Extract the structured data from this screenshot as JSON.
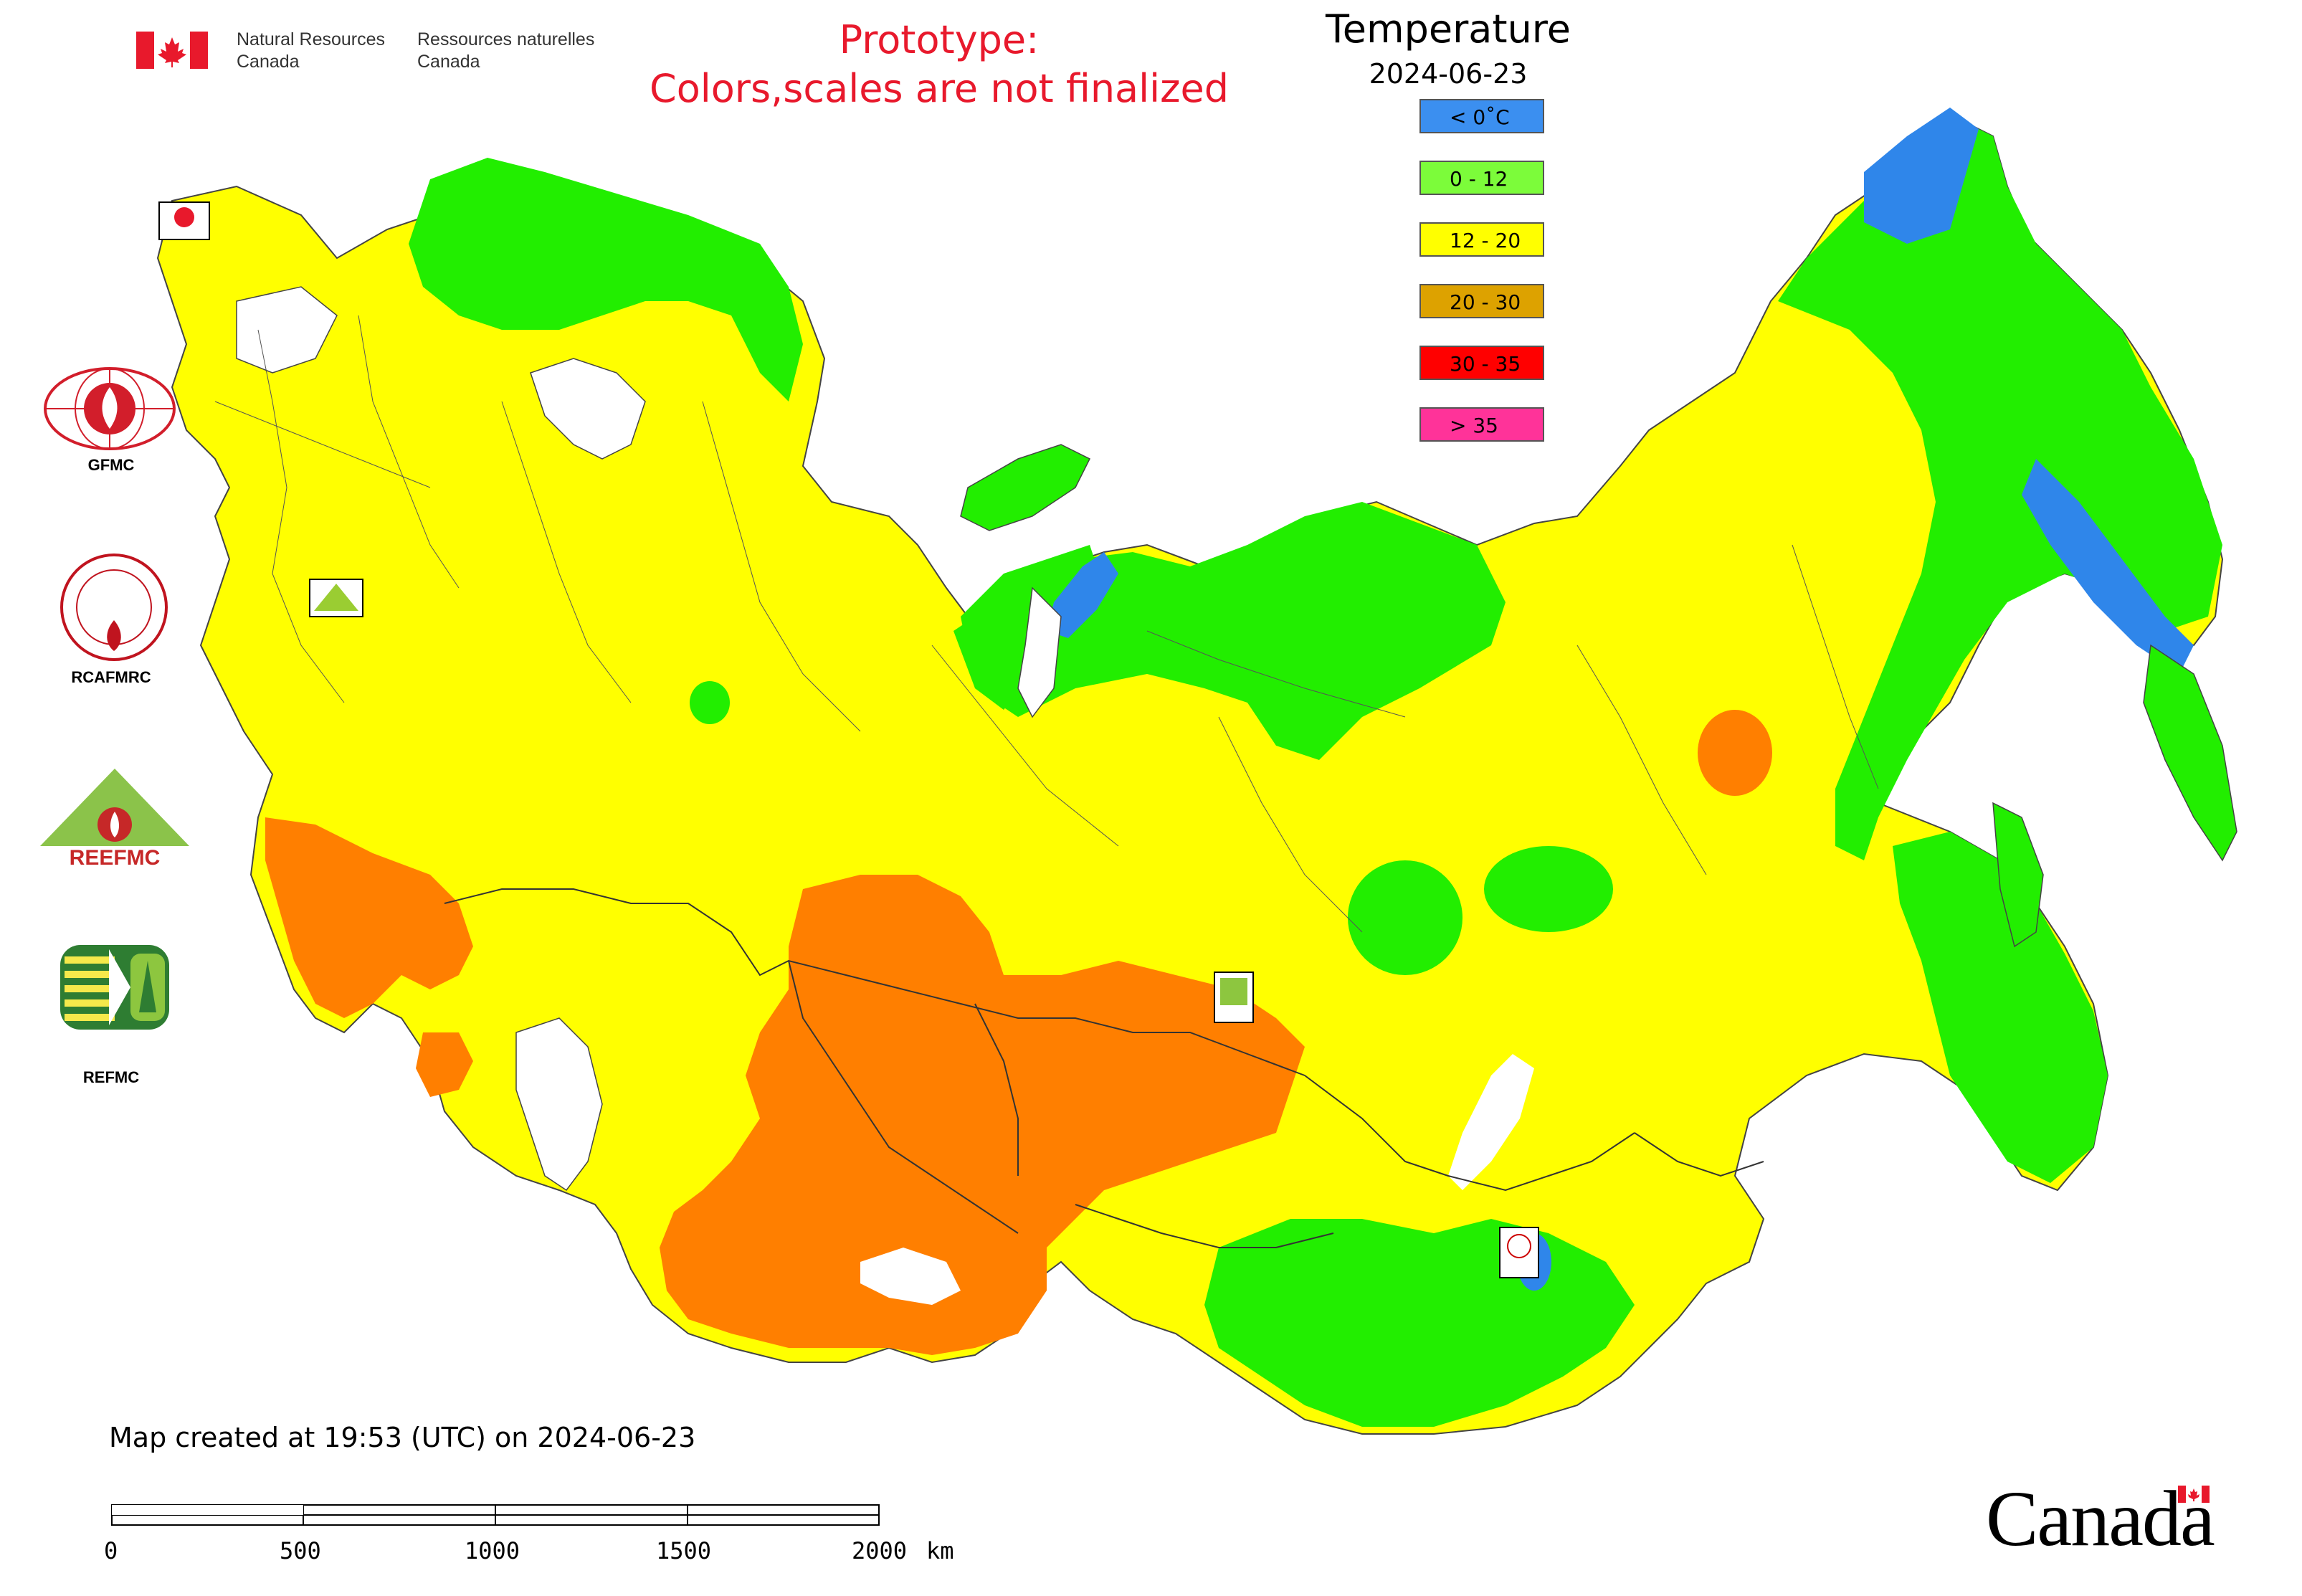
{
  "header": {
    "dept_en_line1": "Natural Resources",
    "dept_en_line2": "Canada",
    "dept_fr_line1": "Ressources naturelles",
    "dept_fr_line2": "Canada",
    "prototype_line1": "Prototype:",
    "prototype_line2": "Colors,scales are not finalized"
  },
  "legend": {
    "title": "Temperature",
    "date": "2024-06-23",
    "classes": [
      {
        "label": "< 0˚C",
        "color": "#3b8ff0"
      },
      {
        "label": "0 - 12",
        "color": "#7cfc3a"
      },
      {
        "label": "12 - 20",
        "color": "#ffff00"
      },
      {
        "label": "20 - 30",
        "color": "#dda200"
      },
      {
        "label": "30 - 35",
        "color": "#ff0000"
      },
      {
        "label": "> 35",
        "color": "#ff3399"
      }
    ]
  },
  "map": {
    "colors": {
      "below_zero": "#2f86ea",
      "cool": "#22ee00",
      "mild": "#ffff00",
      "warm": "#ff7f00",
      "water": "#ffffff",
      "border": "#333333"
    }
  },
  "centers": [
    {
      "label": "GFMC",
      "icon": "gfmc-logo-icon"
    },
    {
      "label": "RCAFMRC",
      "icon": "rcafmrc-logo-icon"
    },
    {
      "label": "",
      "icon": "reefmc-logo-icon",
      "wordmark": "REEFMC"
    },
    {
      "label": "REFMC",
      "icon": "refmc-logo-icon"
    }
  ],
  "footer": {
    "created": "Map created at 19:53 (UTC) on 2024-06-23",
    "scale_ticks": [
      "0",
      "500",
      "1000",
      "1500",
      "2000"
    ],
    "scale_unit": "km",
    "wordmark": "Canada"
  }
}
